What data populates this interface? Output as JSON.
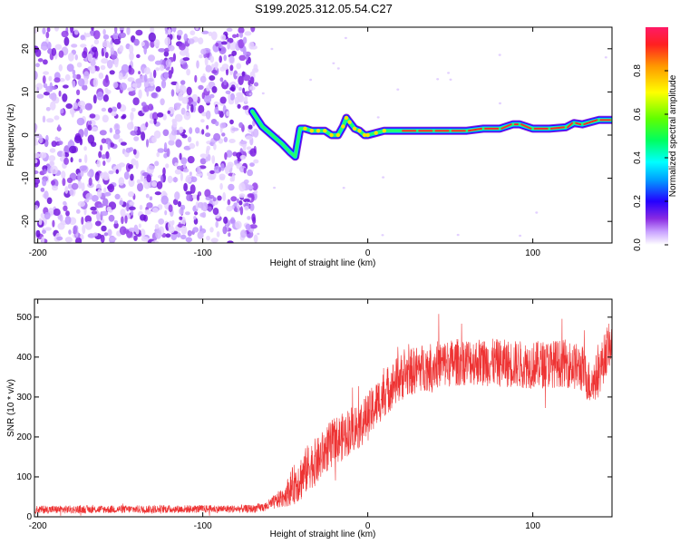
{
  "title": "S199.2025.312.05.54.C27",
  "chart_data": [
    {
      "type": "heatmap",
      "title": "S199.2025.312.05.54.C27",
      "xlabel": "Height of straight line (km)",
      "ylabel": "Frequency (Hz)",
      "xlim": [
        -202,
        148
      ],
      "ylim": [
        -25,
        25
      ],
      "x_ticks": [
        -200,
        -100,
        0,
        100
      ],
      "x_tick_labels": [
        "-200",
        "-100",
        "0",
        "100"
      ],
      "y_ticks": [
        -20,
        -10,
        0,
        10,
        20
      ],
      "y_tick_labels": [
        "-20",
        "-10",
        "0",
        "10",
        "20"
      ],
      "noise_region": {
        "x": [
          -202,
          -72
        ],
        "y": [
          -25,
          25
        ]
      },
      "ridge": {
        "x": [
          -70,
          -64,
          -58,
          -52,
          -47,
          -44,
          -41,
          -38,
          -34,
          -30,
          -26,
          -22,
          -18,
          -15,
          -13,
          -11,
          -8,
          -5,
          -2,
          0,
          5,
          10,
          20,
          30,
          40,
          50,
          60,
          70,
          80,
          88,
          92,
          100,
          110,
          120,
          125,
          130,
          140,
          148
        ],
        "freq": [
          5.5,
          2,
          0,
          -2,
          -4,
          -5,
          1.5,
          1.5,
          1,
          1,
          1,
          0,
          0,
          2,
          4,
          3,
          1.5,
          1,
          0,
          0,
          0.5,
          1,
          1,
          1,
          1,
          1,
          1,
          1.5,
          1.5,
          2.5,
          2.5,
          1.5,
          1.5,
          1.8,
          2.8,
          2.5,
          3.5,
          3.5
        ]
      },
      "colorbar": {
        "label": "Normalized spectral amplitude",
        "range": [
          0,
          1
        ],
        "ticks": [
          0.0,
          0.2,
          0.4,
          0.6,
          0.8
        ],
        "tick_labels": [
          "0.0",
          "0.2",
          "0.4",
          "0.6",
          "0.8"
        ]
      }
    },
    {
      "type": "line",
      "xlabel": "Height of straight line (km)",
      "ylabel": "SNR (10 * v/v)",
      "xlim": [
        -202,
        148
      ],
      "ylim": [
        0,
        545
      ],
      "x_ticks": [
        -200,
        -100,
        0,
        100
      ],
      "x_tick_labels": [
        "-200",
        "-100",
        "0",
        "100"
      ],
      "y_ticks": [
        0,
        100,
        200,
        300,
        400,
        500
      ],
      "y_tick_labels": [
        "0",
        "100",
        "200",
        "300",
        "400",
        "500"
      ],
      "series": [
        {
          "name": "SNR",
          "color": "#ee3333",
          "envelope_x": [
            -202,
            -70,
            -62,
            -55,
            -50,
            -45,
            -40,
            -35,
            -30,
            -25,
            -20,
            -15,
            -10,
            -5,
            0,
            5,
            10,
            15,
            20,
            30,
            40,
            50,
            60,
            80,
            100,
            120,
            130,
            135,
            140,
            145,
            148
          ],
          "envelope_mean": [
            18,
            20,
            25,
            40,
            55,
            80,
            100,
            130,
            140,
            170,
            190,
            200,
            220,
            230,
            250,
            280,
            310,
            330,
            350,
            370,
            380,
            385,
            390,
            385,
            380,
            385,
            370,
            330,
            360,
            420,
            440
          ],
          "envelope_spread": [
            10,
            10,
            12,
            20,
            30,
            50,
            60,
            60,
            60,
            60,
            60,
            60,
            60,
            60,
            60,
            60,
            60,
            60,
            60,
            60,
            60,
            60,
            60,
            60,
            60,
            60,
            60,
            55,
            60,
            60,
            50
          ]
        }
      ]
    }
  ]
}
